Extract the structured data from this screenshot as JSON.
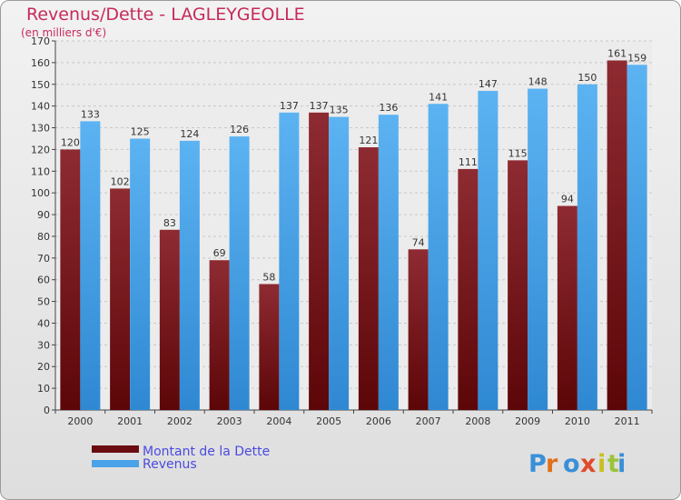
{
  "title": "Revenus/Dette - LAGLEYGEOLLE",
  "subtitle": "(en milliers d'€)",
  "logo_text": "Proxiti",
  "colors": {
    "dette": "#7a1a1f",
    "revenus": "#4aa3e8",
    "title": "#c72a5a",
    "legend": "#4a4ae0"
  },
  "chart_data": {
    "type": "bar",
    "categories": [
      "2000",
      "2001",
      "2002",
      "2003",
      "2004",
      "2005",
      "2006",
      "2007",
      "2008",
      "2009",
      "2010",
      "2011"
    ],
    "series": [
      {
        "name": "Montant de la Dette",
        "values": [
          120,
          102,
          83,
          69,
          58,
          137,
          121,
          74,
          111,
          115,
          94,
          161
        ]
      },
      {
        "name": "Revenus",
        "values": [
          133,
          125,
          124,
          126,
          137,
          135,
          136,
          141,
          147,
          148,
          150,
          159
        ]
      }
    ],
    "title": "Revenus/Dette - LAGLEYGEOLLE",
    "subtitle": "(en milliers d'€)",
    "ylim": [
      0,
      170
    ],
    "ytick_step": 10,
    "grid": true,
    "legend_position": "bottom-left"
  }
}
